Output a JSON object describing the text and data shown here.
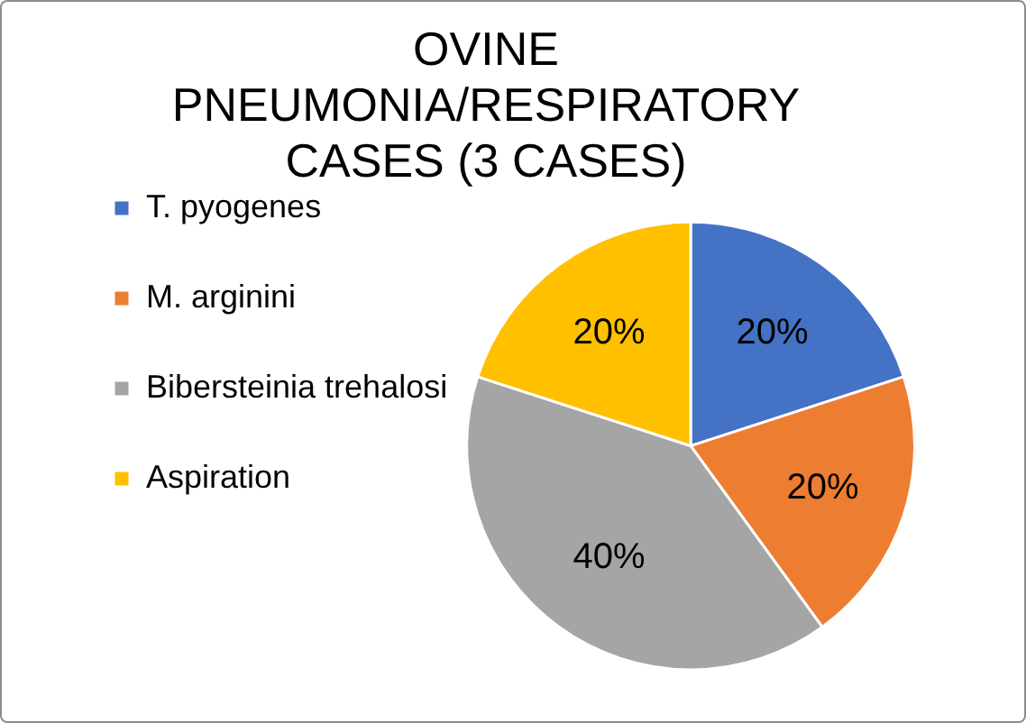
{
  "chart_data": {
    "type": "pie",
    "title": "OVINE PNEUMONIA/RESPIRATORY CASES (3 CASES)",
    "categories": [
      "T. pyogenes",
      "M. arginini",
      "Bibersteinia trehalosi",
      "Aspiration"
    ],
    "values": [
      20,
      20,
      40,
      20
    ],
    "colors": [
      "#4472c4",
      "#ed7d31",
      "#a5a5a5",
      "#ffc000"
    ],
    "value_labels": [
      "20%",
      "20%",
      "40%",
      "20%"
    ],
    "legend": "left"
  }
}
